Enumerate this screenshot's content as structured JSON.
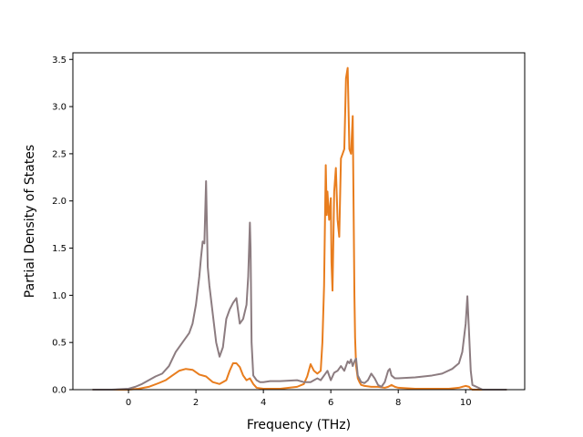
{
  "chart_data": {
    "type": "line",
    "title": "",
    "xlabel": "Frequency (THz)",
    "ylabel": "Partial Density of States",
    "xlim": [
      -1.65,
      11.75
    ],
    "ylim": [
      0,
      3.57
    ],
    "grid": false,
    "legend": "none",
    "x_ticks": [
      0,
      2,
      4,
      6,
      8,
      10
    ],
    "x_tick_labels": [
      "0",
      "2",
      "4",
      "6",
      "8",
      "10"
    ],
    "y_ticks": [
      0.0,
      0.5,
      1.0,
      1.5,
      2.0,
      2.5,
      3.0,
      3.5
    ],
    "y_tick_labels": [
      "0.0",
      "0.5",
      "1.0",
      "1.5",
      "2.0",
      "2.5",
      "3.0",
      "3.5"
    ],
    "series": [
      {
        "color": "#e87d1e",
        "x": [
          -1.05,
          -0.5,
          0.0,
          0.3,
          0.6,
          0.9,
          1.1,
          1.3,
          1.5,
          1.7,
          1.9,
          2.1,
          2.3,
          2.5,
          2.7,
          2.9,
          3.0,
          3.1,
          3.2,
          3.3,
          3.4,
          3.5,
          3.6,
          3.7,
          3.8,
          4.0,
          4.5,
          5.0,
          5.2,
          5.3,
          5.4,
          5.5,
          5.6,
          5.7,
          5.75,
          5.8,
          5.85,
          5.88,
          5.9,
          5.95,
          6.0,
          6.02,
          6.05,
          6.1,
          6.15,
          6.2,
          6.25,
          6.3,
          6.35,
          6.4,
          6.45,
          6.5,
          6.55,
          6.6,
          6.65,
          6.7,
          6.72,
          6.75,
          6.8,
          6.85,
          6.9,
          7.0,
          7.2,
          7.4,
          7.6,
          7.7,
          7.8,
          7.9,
          8.0,
          8.5,
          9.0,
          9.5,
          9.8,
          10.0,
          10.1,
          10.15,
          10.2,
          10.5,
          11.2
        ],
        "y": [
          0.0,
          0.0,
          0.0,
          0.01,
          0.03,
          0.07,
          0.1,
          0.15,
          0.2,
          0.22,
          0.21,
          0.16,
          0.14,
          0.08,
          0.06,
          0.1,
          0.2,
          0.28,
          0.28,
          0.24,
          0.15,
          0.1,
          0.12,
          0.06,
          0.02,
          0.01,
          0.01,
          0.03,
          0.06,
          0.14,
          0.27,
          0.2,
          0.17,
          0.2,
          0.5,
          1.1,
          2.38,
          1.85,
          2.1,
          1.8,
          2.03,
          1.35,
          1.05,
          2.1,
          2.35,
          1.8,
          1.62,
          2.45,
          2.5,
          2.55,
          3.3,
          3.41,
          2.55,
          2.5,
          2.9,
          1.0,
          0.55,
          0.25,
          0.12,
          0.08,
          0.05,
          0.04,
          0.03,
          0.03,
          0.02,
          0.03,
          0.05,
          0.03,
          0.02,
          0.01,
          0.01,
          0.01,
          0.02,
          0.04,
          0.03,
          0.01,
          0.0,
          0.0,
          0.0
        ]
      },
      {
        "color": "#8c7c80",
        "x": [
          -1.05,
          -0.5,
          0.0,
          0.2,
          0.4,
          0.6,
          0.8,
          1.0,
          1.2,
          1.4,
          1.6,
          1.8,
          1.9,
          2.0,
          2.1,
          2.15,
          2.2,
          2.25,
          2.3,
          2.35,
          2.4,
          2.5,
          2.6,
          2.7,
          2.8,
          2.9,
          3.0,
          3.1,
          3.2,
          3.3,
          3.4,
          3.5,
          3.55,
          3.6,
          3.62,
          3.65,
          3.7,
          3.8,
          3.9,
          4.0,
          4.2,
          4.5,
          5.0,
          5.2,
          5.4,
          5.5,
          5.6,
          5.7,
          5.8,
          5.9,
          6.0,
          6.1,
          6.2,
          6.3,
          6.4,
          6.5,
          6.55,
          6.6,
          6.65,
          6.7,
          6.75,
          6.8,
          6.9,
          7.0,
          7.1,
          7.2,
          7.3,
          7.4,
          7.5,
          7.6,
          7.7,
          7.75,
          7.8,
          7.9,
          8.0,
          8.5,
          9.0,
          9.3,
          9.6,
          9.8,
          9.9,
          10.0,
          10.05,
          10.1,
          10.15,
          10.2,
          10.5,
          11.2
        ],
        "y": [
          0.0,
          0.0,
          0.01,
          0.03,
          0.06,
          0.1,
          0.14,
          0.17,
          0.25,
          0.4,
          0.5,
          0.6,
          0.7,
          0.9,
          1.2,
          1.4,
          1.57,
          1.55,
          2.21,
          1.3,
          1.1,
          0.8,
          0.5,
          0.35,
          0.45,
          0.75,
          0.85,
          0.92,
          0.97,
          0.7,
          0.75,
          0.9,
          1.2,
          1.77,
          1.5,
          0.5,
          0.15,
          0.1,
          0.08,
          0.08,
          0.09,
          0.09,
          0.1,
          0.08,
          0.08,
          0.1,
          0.12,
          0.1,
          0.15,
          0.2,
          0.1,
          0.18,
          0.2,
          0.25,
          0.2,
          0.3,
          0.28,
          0.32,
          0.25,
          0.3,
          0.33,
          0.15,
          0.08,
          0.07,
          0.1,
          0.17,
          0.12,
          0.05,
          0.03,
          0.08,
          0.2,
          0.22,
          0.15,
          0.12,
          0.12,
          0.13,
          0.15,
          0.17,
          0.22,
          0.28,
          0.4,
          0.7,
          0.99,
          0.6,
          0.2,
          0.05,
          0.0,
          0.0
        ]
      }
    ]
  }
}
